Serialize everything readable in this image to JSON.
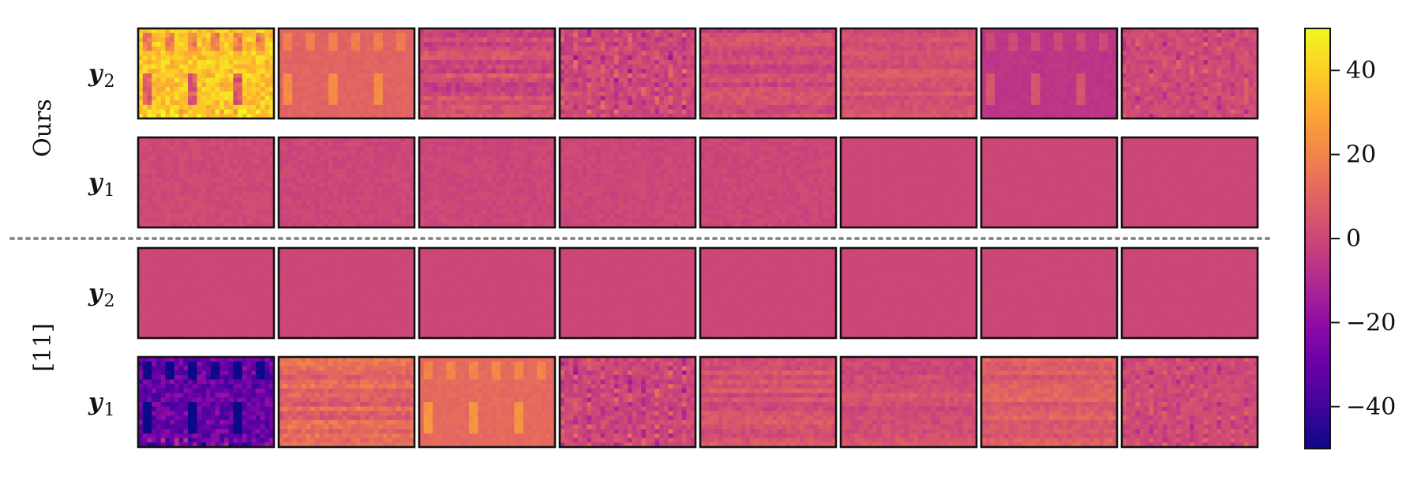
{
  "chart_data": {
    "type": "heatmap",
    "groups": [
      {
        "name": "Ours",
        "rows": [
          {
            "label_main": "y",
            "label_sub": "2"
          },
          {
            "label_main": "y",
            "label_sub": "1"
          }
        ]
      },
      {
        "name": "[11]",
        "rows": [
          {
            "label_main": "y",
            "label_sub": "2"
          },
          {
            "label_main": "y",
            "label_sub": "1"
          }
        ]
      }
    ],
    "tiles_per_row": 8,
    "colormap": "plasma",
    "colorbar": {
      "min": -50,
      "max": 50,
      "ticks": [
        -40,
        -20,
        0,
        20,
        40
      ],
      "tick_labels": [
        "−40",
        "−20",
        "0",
        "20",
        "40"
      ]
    },
    "tile_levels": [
      [
        38,
        10,
        2,
        0,
        1,
        4,
        -6,
        1
      ],
      [
        1,
        0,
        0,
        0,
        0,
        0,
        0,
        0
      ],
      [
        0,
        0,
        0,
        0,
        0,
        0,
        0,
        0
      ],
      [
        -30,
        10,
        12,
        0,
        4,
        3,
        8,
        1
      ]
    ],
    "tile_patterns": [
      [
        "facade",
        "facade-soft",
        "stripes",
        "bars",
        "stripes",
        "stripes",
        "facade-soft",
        "bars"
      ],
      [
        "faint",
        "faint",
        "faint",
        "faint",
        "faint",
        "flat",
        "flat",
        "flat"
      ],
      [
        "flat",
        "flat",
        "flat",
        "flat",
        "flat",
        "flat",
        "flat",
        "flat"
      ],
      [
        "facade",
        "stripes",
        "facade-soft",
        "bars",
        "stripes",
        "stripes",
        "stripes",
        "bars"
      ]
    ],
    "tile_contrast": [
      [
        22,
        14,
        12,
        14,
        10,
        8,
        12,
        10
      ],
      [
        3,
        3,
        3,
        3,
        3,
        1,
        1,
        1
      ],
      [
        1,
        1,
        1,
        1,
        1,
        1,
        1,
        1
      ],
      [
        28,
        12,
        14,
        14,
        10,
        9,
        9,
        10
      ]
    ]
  }
}
